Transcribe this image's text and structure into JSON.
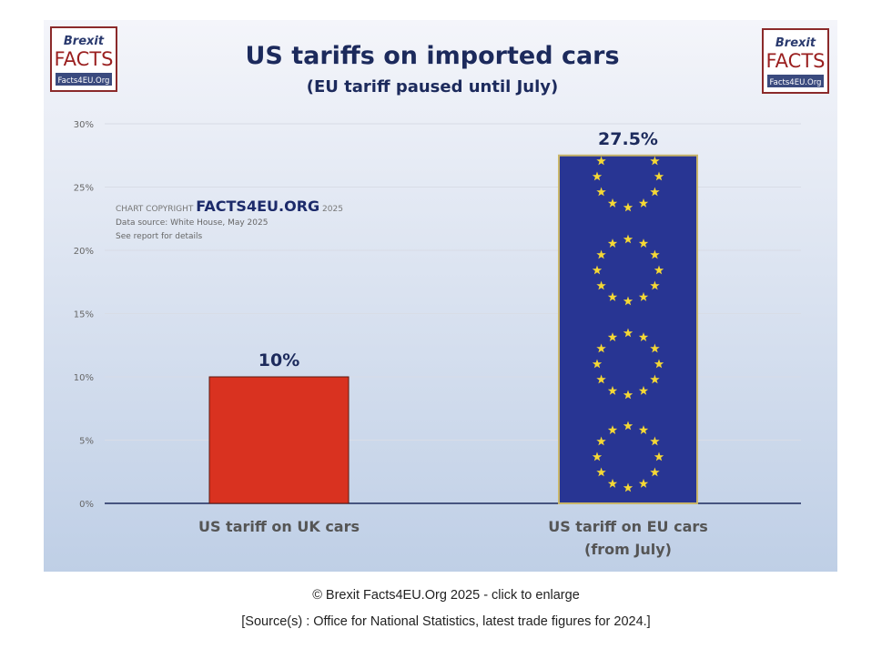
{
  "chart_data": {
    "type": "bar",
    "title": "US tariffs on imported cars",
    "subtitle": "(EU tariff paused until July)",
    "categories": [
      "US tariff on UK cars",
      "US tariff on EU cars (from July)"
    ],
    "category_lines": [
      [
        "US tariff on UK cars"
      ],
      [
        "US tariff on EU cars",
        "(from July)"
      ]
    ],
    "values": [
      10,
      27.5
    ],
    "data_labels": [
      "10%",
      "27.5%"
    ],
    "bar_colors": [
      "#d93220",
      "#283593"
    ],
    "star_color": "#f5d835",
    "ylim": [
      0,
      30
    ],
    "yticks": [
      0,
      5,
      10,
      15,
      20,
      25,
      30
    ],
    "ytick_labels": [
      "0%",
      "5%",
      "10%",
      "15%",
      "20%",
      "25%",
      "30%"
    ],
    "grid": true,
    "xlabel": "",
    "ylabel": ""
  },
  "watermark": {
    "prefix": "CHART COPYRIGHT",
    "brand": "FACTS4EU.ORG",
    "year": "2025",
    "source": "Data source: White House, May 2025",
    "note": "See report for details"
  },
  "logo": {
    "line1": "Brexit",
    "line2": "FACTS",
    "line3": "Facts4EU.Org"
  },
  "caption": "© Brexit Facts4EU.Org 2025 - click to enlarge",
  "source_line": "[Source(s) : Office for National Statistics, latest trade figures for 2024.]"
}
